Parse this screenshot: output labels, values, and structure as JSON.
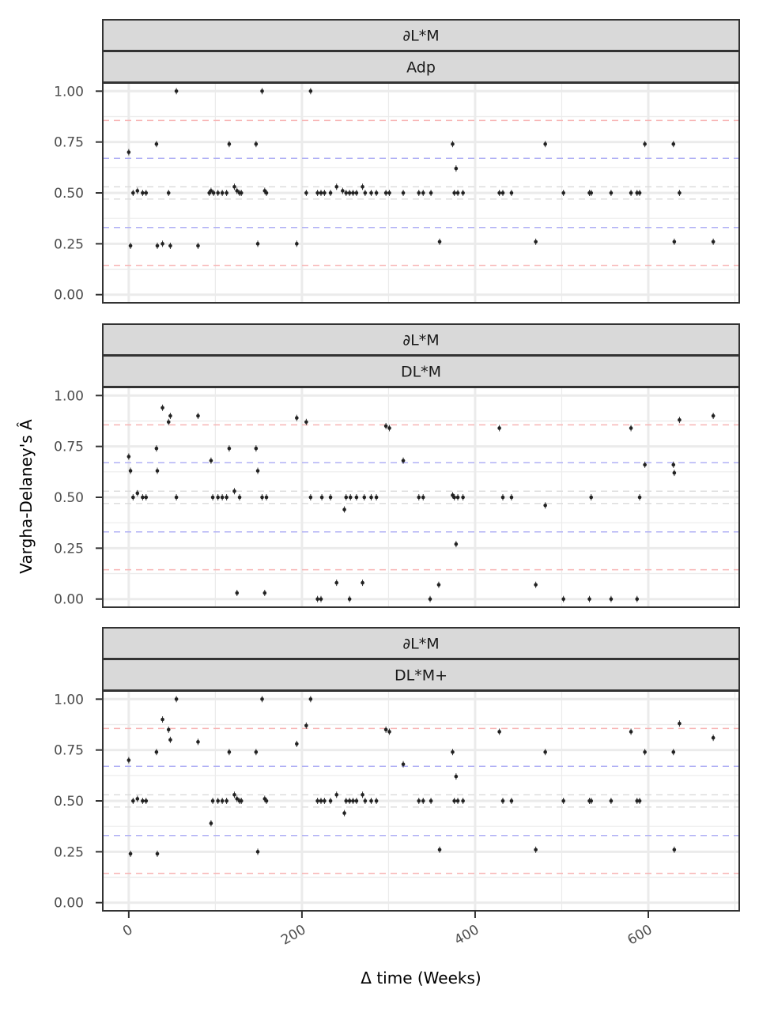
{
  "chart_data": {
    "type": "scatter",
    "xlabel": "Δ time (Weeks)",
    "ylabel": "Vargha-Delaney's Â",
    "xlim": [
      -30,
      705
    ],
    "ylim": [
      -0.04,
      1.04
    ],
    "x_ticks": [
      0,
      200,
      400,
      600
    ],
    "x_tick_labels": [
      "0",
      "200",
      "400",
      "600"
    ],
    "y_ticks": [
      0,
      0.25,
      0.5,
      0.75,
      1
    ],
    "y_tick_labels": [
      "0.00",
      "0.25",
      "0.50",
      "0.75",
      "1.00"
    ],
    "grid": true,
    "reference_lines": [
      {
        "y": 0.856,
        "color": "#f8b4b4"
      },
      {
        "y": 0.144,
        "color": "#f8b4b4"
      },
      {
        "y": 0.67,
        "color": "#b0b0f5"
      },
      {
        "y": 0.33,
        "color": "#b0b0f5"
      },
      {
        "y": 0.53,
        "color": "#dddddd"
      },
      {
        "y": 0.47,
        "color": "#dddddd"
      }
    ],
    "panels": [
      {
        "strip_top": "∂L*M",
        "strip_bottom": "Adp",
        "points": [
          [
            0,
            0.7
          ],
          [
            2,
            0.24
          ],
          [
            5,
            0.5
          ],
          [
            10,
            0.51
          ],
          [
            16,
            0.5
          ],
          [
            20,
            0.5
          ],
          [
            32,
            0.74
          ],
          [
            33,
            0.24
          ],
          [
            39,
            0.25
          ],
          [
            46,
            0.5
          ],
          [
            48,
            0.24
          ],
          [
            55,
            1.0
          ],
          [
            80,
            0.24
          ],
          [
            93,
            0.5
          ],
          [
            95,
            0.51
          ],
          [
            98,
            0.5
          ],
          [
            103,
            0.5
          ],
          [
            108,
            0.5
          ],
          [
            113,
            0.5
          ],
          [
            116,
            0.74
          ],
          [
            122,
            0.53
          ],
          [
            125,
            0.51
          ],
          [
            128,
            0.5
          ],
          [
            130,
            0.5
          ],
          [
            147,
            0.74
          ],
          [
            149,
            0.25
          ],
          [
            154,
            1.0
          ],
          [
            157,
            0.51
          ],
          [
            159,
            0.5
          ],
          [
            194,
            0.25
          ],
          [
            205,
            0.5
          ],
          [
            210,
            1.0
          ],
          [
            218,
            0.5
          ],
          [
            222,
            0.5
          ],
          [
            226,
            0.5
          ],
          [
            233,
            0.5
          ],
          [
            240,
            0.53
          ],
          [
            247,
            0.51
          ],
          [
            251,
            0.5
          ],
          [
            255,
            0.5
          ],
          [
            259,
            0.5
          ],
          [
            263,
            0.5
          ],
          [
            270,
            0.53
          ],
          [
            273,
            0.5
          ],
          [
            280,
            0.5
          ],
          [
            286,
            0.5
          ],
          [
            297,
            0.5
          ],
          [
            301,
            0.5
          ],
          [
            317,
            0.5
          ],
          [
            335,
            0.5
          ],
          [
            340,
            0.5
          ],
          [
            349,
            0.5
          ],
          [
            359,
            0.26
          ],
          [
            374,
            0.74
          ],
          [
            376,
            0.5
          ],
          [
            378,
            0.62
          ],
          [
            380,
            0.5
          ],
          [
            386,
            0.5
          ],
          [
            428,
            0.5
          ],
          [
            432,
            0.5
          ],
          [
            442,
            0.5
          ],
          [
            470,
            0.26
          ],
          [
            481,
            0.74
          ],
          [
            502,
            0.5
          ],
          [
            532,
            0.5
          ],
          [
            534,
            0.5
          ],
          [
            557,
            0.5
          ],
          [
            580,
            0.5
          ],
          [
            587,
            0.5
          ],
          [
            590,
            0.5
          ],
          [
            596,
            0.74
          ],
          [
            629,
            0.74
          ],
          [
            630,
            0.26
          ],
          [
            636,
            0.5
          ],
          [
            675,
            0.26
          ]
        ]
      },
      {
        "strip_top": "∂L*M",
        "strip_bottom": "DL*M",
        "points": [
          [
            0,
            0.7
          ],
          [
            2,
            0.63
          ],
          [
            5,
            0.5
          ],
          [
            10,
            0.52
          ],
          [
            16,
            0.5
          ],
          [
            20,
            0.5
          ],
          [
            32,
            0.74
          ],
          [
            33,
            0.63
          ],
          [
            39,
            0.94
          ],
          [
            46,
            0.87
          ],
          [
            48,
            0.9
          ],
          [
            55,
            0.5
          ],
          [
            80,
            0.9
          ],
          [
            95,
            0.68
          ],
          [
            97,
            0.5
          ],
          [
            103,
            0.5
          ],
          [
            108,
            0.5
          ],
          [
            113,
            0.5
          ],
          [
            116,
            0.74
          ],
          [
            122,
            0.53
          ],
          [
            125,
            0.03
          ],
          [
            128,
            0.5
          ],
          [
            147,
            0.74
          ],
          [
            149,
            0.63
          ],
          [
            154,
            0.5
          ],
          [
            157,
            0.03
          ],
          [
            159,
            0.5
          ],
          [
            194,
            0.89
          ],
          [
            205,
            0.87
          ],
          [
            210,
            0.5
          ],
          [
            218,
            0.0
          ],
          [
            222,
            0.0
          ],
          [
            223,
            0.5
          ],
          [
            233,
            0.5
          ],
          [
            240,
            0.08
          ],
          [
            249,
            0.44
          ],
          [
            251,
            0.5
          ],
          [
            255,
            0.0
          ],
          [
            256,
            0.5
          ],
          [
            263,
            0.5
          ],
          [
            270,
            0.08
          ],
          [
            272,
            0.5
          ],
          [
            280,
            0.5
          ],
          [
            286,
            0.5
          ],
          [
            297,
            0.85
          ],
          [
            301,
            0.84
          ],
          [
            317,
            0.68
          ],
          [
            335,
            0.5
          ],
          [
            340,
            0.5
          ],
          [
            348,
            0.0
          ],
          [
            358,
            0.07
          ],
          [
            374,
            0.51
          ],
          [
            376,
            0.5
          ],
          [
            378,
            0.27
          ],
          [
            380,
            0.5
          ],
          [
            386,
            0.5
          ],
          [
            428,
            0.84
          ],
          [
            432,
            0.5
          ],
          [
            442,
            0.5
          ],
          [
            470,
            0.07
          ],
          [
            481,
            0.46
          ],
          [
            502,
            0.0
          ],
          [
            532,
            0.0
          ],
          [
            534,
            0.5
          ],
          [
            557,
            0.0
          ],
          [
            580,
            0.84
          ],
          [
            587,
            0.0
          ],
          [
            590,
            0.5
          ],
          [
            596,
            0.66
          ],
          [
            629,
            0.66
          ],
          [
            630,
            0.62
          ],
          [
            636,
            0.88
          ],
          [
            675,
            0.9
          ]
        ]
      },
      {
        "strip_top": "∂L*M",
        "strip_bottom": "DL*M+",
        "points": [
          [
            0,
            0.7
          ],
          [
            2,
            0.24
          ],
          [
            5,
            0.5
          ],
          [
            10,
            0.51
          ],
          [
            16,
            0.5
          ],
          [
            20,
            0.5
          ],
          [
            32,
            0.74
          ],
          [
            33,
            0.24
          ],
          [
            39,
            0.9
          ],
          [
            46,
            0.85
          ],
          [
            48,
            0.8
          ],
          [
            55,
            1.0
          ],
          [
            80,
            0.79
          ],
          [
            95,
            0.39
          ],
          [
            97,
            0.5
          ],
          [
            103,
            0.5
          ],
          [
            108,
            0.5
          ],
          [
            113,
            0.5
          ],
          [
            116,
            0.74
          ],
          [
            122,
            0.53
          ],
          [
            125,
            0.51
          ],
          [
            128,
            0.5
          ],
          [
            130,
            0.5
          ],
          [
            147,
            0.74
          ],
          [
            149,
            0.25
          ],
          [
            154,
            1.0
          ],
          [
            157,
            0.51
          ],
          [
            159,
            0.5
          ],
          [
            194,
            0.78
          ],
          [
            205,
            0.87
          ],
          [
            210,
            1.0
          ],
          [
            218,
            0.5
          ],
          [
            222,
            0.5
          ],
          [
            226,
            0.5
          ],
          [
            233,
            0.5
          ],
          [
            240,
            0.53
          ],
          [
            249,
            0.44
          ],
          [
            251,
            0.5
          ],
          [
            255,
            0.5
          ],
          [
            259,
            0.5
          ],
          [
            263,
            0.5
          ],
          [
            270,
            0.53
          ],
          [
            273,
            0.5
          ],
          [
            280,
            0.5
          ],
          [
            286,
            0.5
          ],
          [
            297,
            0.85
          ],
          [
            301,
            0.84
          ],
          [
            317,
            0.68
          ],
          [
            335,
            0.5
          ],
          [
            340,
            0.5
          ],
          [
            349,
            0.5
          ],
          [
            359,
            0.26
          ],
          [
            374,
            0.74
          ],
          [
            376,
            0.5
          ],
          [
            378,
            0.62
          ],
          [
            380,
            0.5
          ],
          [
            386,
            0.5
          ],
          [
            428,
            0.84
          ],
          [
            432,
            0.5
          ],
          [
            442,
            0.5
          ],
          [
            470,
            0.26
          ],
          [
            481,
            0.74
          ],
          [
            502,
            0.5
          ],
          [
            532,
            0.5
          ],
          [
            534,
            0.5
          ],
          [
            557,
            0.5
          ],
          [
            580,
            0.84
          ],
          [
            587,
            0.5
          ],
          [
            590,
            0.5
          ],
          [
            596,
            0.74
          ],
          [
            629,
            0.74
          ],
          [
            630,
            0.26
          ],
          [
            636,
            0.88
          ],
          [
            675,
            0.81
          ]
        ]
      }
    ]
  }
}
